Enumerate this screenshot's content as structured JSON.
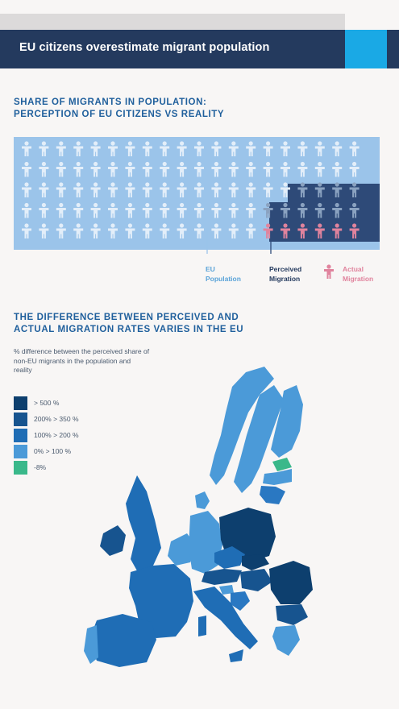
{
  "header": {
    "title": "EU citizens overestimate migrant population"
  },
  "section1": {
    "heading": "SHARE OF MIGRANTS IN POPULATION:\nPERCEPTION OF EU CITIZENS VS REALITY",
    "legend": {
      "eu_population": "EU\nPopulation",
      "perceived_migration": "Perceived\nMigration",
      "actual_migration": "Actual\nMigration"
    }
  },
  "section2": {
    "heading": "THE DIFFERENCE BETWEEN PERCEIVED AND\nACTUAL MIGRATION RATES VARIES IN THE EU",
    "subnote": "% difference between the perceived share of non-EU migrants in the population and reality",
    "legend": [
      {
        "label": "> 500 %",
        "color": "#0d3f6e"
      },
      {
        "label": "200% > 350 %",
        "color": "#17548f"
      },
      {
        "label": "100% > 200 %",
        "color": "#1f6db5"
      },
      {
        "label": "0% > 100 %",
        "color": "#4b9ad8"
      },
      {
        "label": "-8%",
        "color": "#3ab88a"
      }
    ]
  },
  "colors": {
    "header_bg": "#243a5e",
    "header_accent": "#1aa9e5",
    "icon_area_bg": "#9bc4ea",
    "perceived_bg": "#2e4a78",
    "eu_icon": "#e3eef9",
    "perceived_icon": "#8aa2c0",
    "actual_icon": "#e0839d"
  },
  "chart_data": [
    {
      "type": "pictogram",
      "icon_grid": {
        "rows": 5,
        "cols": 20
      },
      "series": [
        {
          "name": "EU Population"
        },
        {
          "name": "Perceived Migration",
          "icons": 16
        },
        {
          "name": "Actual Migration",
          "icons": 6
        }
      ]
    },
    {
      "type": "choropleth",
      "categories": [
        "> 500 %",
        "200% > 350 %",
        "100% > 200 %",
        "0% > 100 %",
        "-8%"
      ]
    }
  ]
}
